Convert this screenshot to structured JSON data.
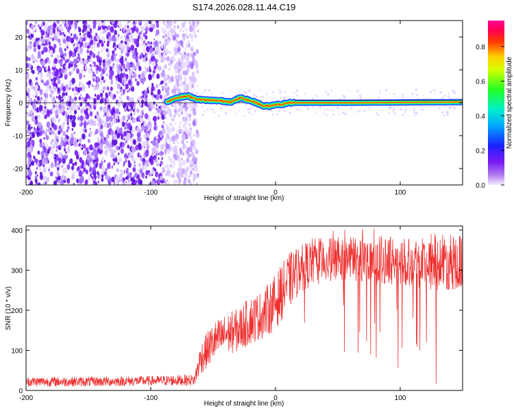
{
  "title": "S174.2026.028.11.44.C19",
  "chart_data": [
    {
      "type": "heatmap",
      "xlabel": "Height of straight line (km)",
      "ylabel": "Frequency (Hz)",
      "xlim": [
        -200,
        150
      ],
      "ylim": [
        -25,
        25
      ],
      "xticks": [
        -200,
        -100,
        0,
        100
      ],
      "yticks": [
        -20,
        -10,
        0,
        10,
        20
      ],
      "colorbar": {
        "label": "Normalized spectral amplitude",
        "range": [
          0.0,
          0.95
        ],
        "ticks": [
          "0.0",
          "0.2",
          "0.4",
          "0.6",
          "0.8"
        ]
      },
      "noise_region_x": [
        -200,
        -70
      ],
      "signal_start_x": -87,
      "frequency_track": {
        "x": [
          -87,
          -80,
          -70,
          -62,
          -55,
          -45,
          -35,
          -28,
          -22,
          -15,
          -10,
          -5,
          0,
          5,
          10,
          15,
          30,
          60,
          100,
          150
        ],
        "freq": [
          0.3,
          1.5,
          2.0,
          1.0,
          0.8,
          0.6,
          0.3,
          1.5,
          0.8,
          0.0,
          -1.0,
          -1.0,
          -0.5,
          -0.5,
          0.0,
          0.0,
          0.0,
          0.0,
          0.1,
          0.2
        ]
      },
      "reference_line_freq": 0
    },
    {
      "type": "line",
      "xlabel": "Height of straight line (km)",
      "ylabel": "SNR (10 * v/v)",
      "xlim": [
        -200,
        150
      ],
      "ylim": [
        0,
        410
      ],
      "xticks": [
        -200,
        -100,
        0,
        100
      ],
      "yticks": [
        0,
        100,
        200,
        300,
        400
      ],
      "series": [
        {
          "name": "SNR",
          "color": "#ee3030",
          "x": [
            -200,
            -150,
            -100,
            -65,
            -60,
            -50,
            -40,
            -30,
            -20,
            -10,
            0,
            10,
            20,
            30,
            40,
            60,
            80,
            100,
            120,
            150
          ],
          "y_center": [
            22,
            22,
            24,
            26,
            80,
            120,
            140,
            150,
            175,
            190,
            220,
            270,
            305,
            320,
            325,
            330,
            325,
            325,
            320,
            320
          ],
          "y_spread": [
            12,
            12,
            12,
            14,
            40,
            50,
            50,
            55,
            60,
            60,
            70,
            70,
            60,
            60,
            55,
            55,
            60,
            60,
            70,
            70
          ]
        }
      ]
    }
  ]
}
